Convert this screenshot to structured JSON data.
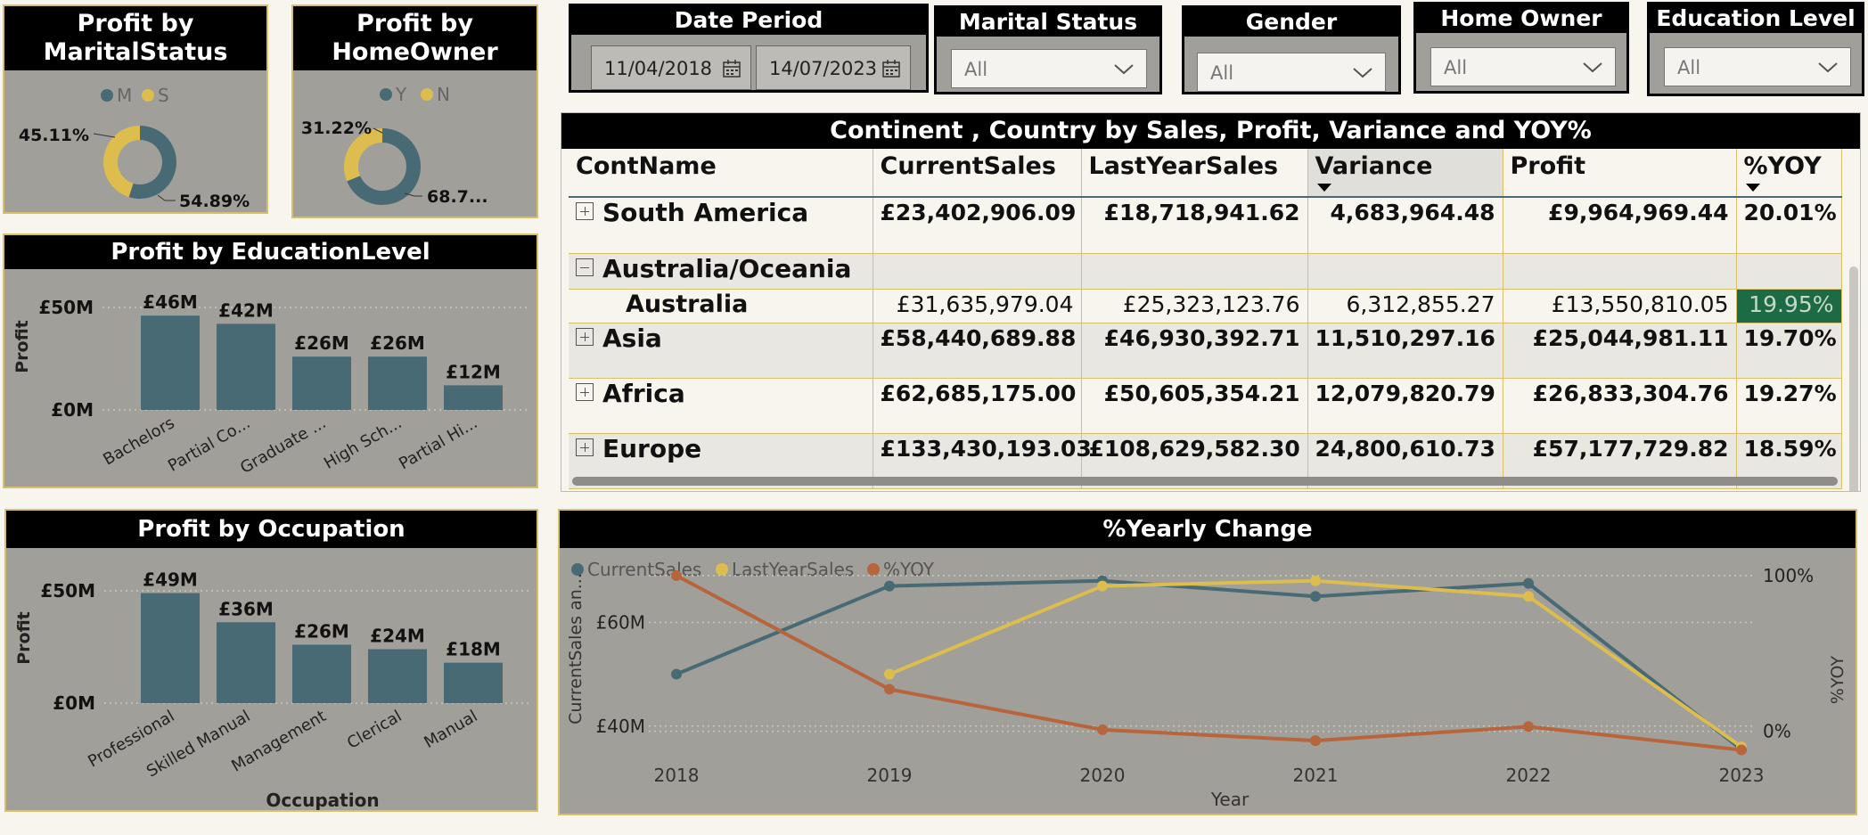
{
  "colors": {
    "teal": "#476a75",
    "gold": "#dcbd4e",
    "orange": "#b7653d",
    "card_bg": "#a19f99",
    "highlight": "#1d6b45"
  },
  "marital": {
    "title": "Profit by MaritalStatus",
    "legend": [
      "M",
      "S"
    ],
    "labels": [
      "45.11%",
      "54.89%"
    ],
    "chart_data": {
      "type": "pie",
      "categories": [
        "S",
        "M"
      ],
      "values": [
        45.11,
        54.89
      ]
    }
  },
  "homeowner": {
    "title": "Profit by HomeOwner",
    "legend": [
      "Y",
      "N"
    ],
    "labels": [
      "31.22%",
      "68.7..."
    ],
    "chart_data": {
      "type": "pie",
      "categories": [
        "N",
        "Y"
      ],
      "values": [
        31.22,
        68.78
      ]
    }
  },
  "education": {
    "title": "Profit by EducationLevel",
    "ylabel": "Profit",
    "yticks": [
      "£50M",
      "£0M"
    ],
    "xlabels": [
      "Bachelors",
      "Partial Co...",
      "Graduate ...",
      "High Sch...",
      "Partial Hi..."
    ],
    "data_labels": [
      "£46M",
      "£42M",
      "£26M",
      "£26M",
      "£12M"
    ],
    "chart_data": {
      "type": "bar",
      "categories": [
        "Bachelors",
        "Partial College",
        "Graduate Degree",
        "High School",
        "Partial High School"
      ],
      "values": [
        46,
        42,
        26,
        26,
        12
      ],
      "ylabel": "Profit",
      "ylim": [
        0,
        50
      ]
    }
  },
  "occupation": {
    "title": "Profit by Occupation",
    "ylabel": "Profit",
    "xlabel": "Occupation",
    "yticks": [
      "£50M",
      "£0M"
    ],
    "xlabels": [
      "Professional",
      "Skilled Manual",
      "Management",
      "Clerical",
      "Manual"
    ],
    "data_labels": [
      "£49M",
      "£36M",
      "£26M",
      "£24M",
      "£18M"
    ],
    "chart_data": {
      "type": "bar",
      "categories": [
        "Professional",
        "Skilled Manual",
        "Management",
        "Clerical",
        "Manual"
      ],
      "values": [
        49,
        36,
        26,
        24,
        18
      ],
      "ylabel": "Profit",
      "xlabel": "Occupation",
      "ylim": [
        0,
        50
      ]
    }
  },
  "slicers": {
    "date": {
      "title": "Date Period",
      "start": "11/04/2018",
      "end": "14/07/2023"
    },
    "marital": {
      "title": "Marital Status",
      "value": "All"
    },
    "gender": {
      "title": "Gender",
      "value": "All"
    },
    "homeowner": {
      "title": "Home Owner",
      "value": "All"
    },
    "education": {
      "title": "Education Level",
      "value": "All"
    }
  },
  "matrix": {
    "title": "Continent , Country by Sales, Profit, Variance and YOY%",
    "headers": [
      "ContName",
      "CurrentSales",
      "LastYearSales",
      "Variance",
      "Profit",
      "%YOY"
    ],
    "rows": [
      {
        "name": "South America",
        "cells": [
          "£23,402,906.09",
          "£18,718,941.62",
          "4,683,964.48",
          "£9,964,969.44",
          "20.01%"
        ]
      },
      {
        "name": "Australia/Oceania",
        "cells": [
          "",
          "",
          "",
          "",
          ""
        ]
      },
      {
        "name": "Australia",
        "cells": [
          "£31,635,979.04",
          "£25,323,123.76",
          "6,312,855.27",
          "£13,550,810.05",
          "19.95%"
        ]
      },
      {
        "name": "Asia",
        "cells": [
          "£58,440,689.88",
          "£46,930,392.71",
          "11,510,297.16",
          "£25,044,981.11",
          "19.70%"
        ]
      },
      {
        "name": "Africa",
        "cells": [
          "£62,685,175.00",
          "£50,605,354.21",
          "12,079,820.79",
          "£26,833,304.76",
          "19.27%"
        ]
      },
      {
        "name": "Europe",
        "cells": [
          "£133,430,193.03",
          "£108,629,582.30",
          "24,800,610.73",
          "£57,177,729.82",
          "18.59%"
        ]
      }
    ]
  },
  "yearly": {
    "title": "%Yearly Change",
    "legend": [
      "CurrentSales",
      "LastYearSales",
      "%YOY"
    ],
    "ylabel_left": "CurrentSales an...",
    "ylabel_right": "%YOY",
    "xlabel": "Year",
    "yticks_left": [
      "£60M",
      "£40M"
    ],
    "yticks_right": [
      "100%",
      "0%"
    ],
    "chart_data": {
      "type": "line",
      "x": [
        "2018",
        "2019",
        "2020",
        "2021",
        "2022",
        "2023"
      ],
      "series": [
        {
          "name": "CurrentSales",
          "values": [
            50,
            67,
            68,
            65,
            67.5,
            35.5
          ]
        },
        {
          "name": "LastYearSales",
          "values": [
            null,
            50,
            67,
            68,
            65,
            36
          ]
        },
        {
          "name": "%YOY",
          "values": [
            100,
            27,
            1,
            -6,
            3,
            -12
          ]
        }
      ],
      "ylim_left": [
        30,
        75
      ],
      "ylim_right": [
        -30,
        120
      ]
    }
  }
}
